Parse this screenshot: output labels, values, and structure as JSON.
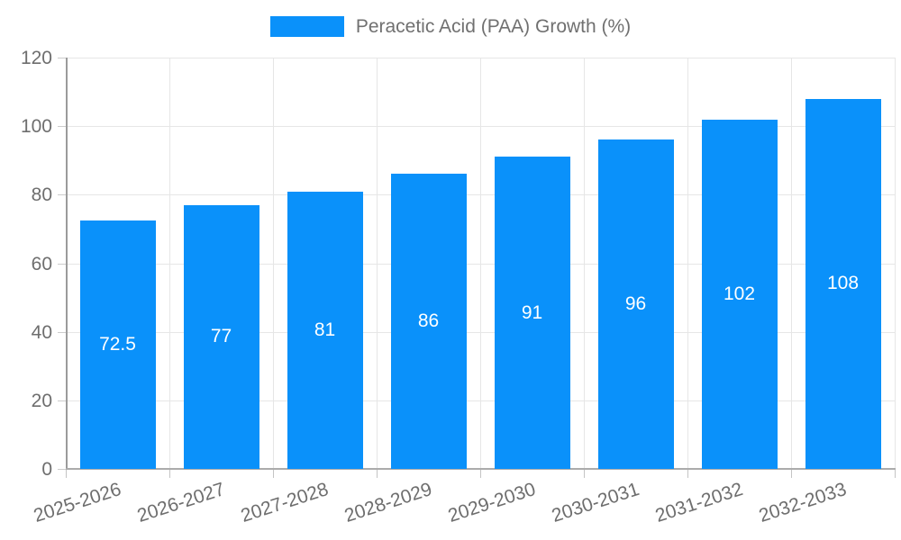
{
  "legend": {
    "label": "Peracetic Acid (PAA) Growth (%)"
  },
  "chart_data": {
    "type": "bar",
    "title": "Peracetic Acid (PAA) Growth (%)",
    "categories": [
      "2025-2026",
      "2026-2027",
      "2027-2028",
      "2028-2029",
      "2029-2030",
      "2030-2031",
      "2031-2032",
      "2032-2033"
    ],
    "values": [
      72.5,
      77,
      81,
      86,
      91,
      96,
      102,
      108
    ],
    "value_labels": [
      "72.5",
      "77",
      "81",
      "86",
      "91",
      "96",
      "102",
      "108"
    ],
    "xlabel": "",
    "ylabel": "",
    "ylim": [
      0,
      120
    ],
    "yticks": [
      0,
      20,
      40,
      60,
      80,
      100,
      120
    ],
    "grid": true,
    "legend_position": "top",
    "bar_color": "#0a91fa",
    "value_label_color": "#ffffff",
    "axis_text_color": "#6e6e6e",
    "gridline_color": "#e6e6e6"
  }
}
